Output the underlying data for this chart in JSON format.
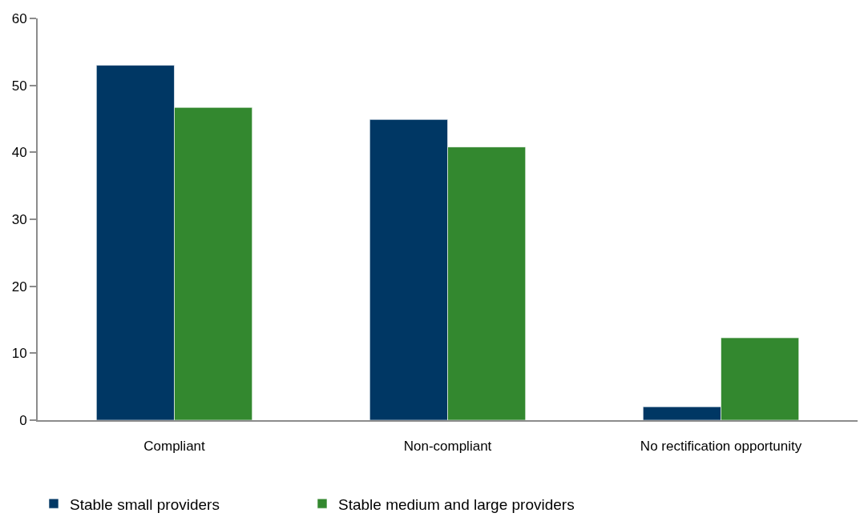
{
  "chart_data": {
    "type": "bar",
    "categories": [
      "Compliant",
      "Non-compliant",
      "No rectification opportunity"
    ],
    "series": [
      {
        "name": "Stable small providers",
        "color": "#003764",
        "values": [
          53.0,
          44.9,
          2.0
        ]
      },
      {
        "name": "Stable medium and large providers",
        "color": "#33882f",
        "values": [
          46.7,
          40.8,
          12.3
        ]
      }
    ],
    "ylim": [
      0,
      60
    ],
    "yticks": [
      0,
      10,
      20,
      30,
      40,
      50,
      60
    ],
    "legend": "bottom left"
  }
}
